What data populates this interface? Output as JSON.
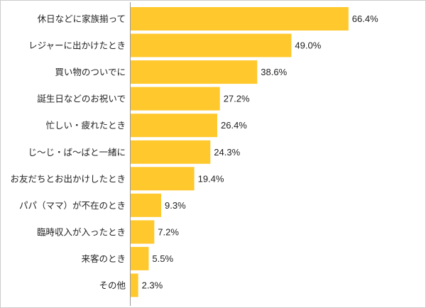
{
  "chart_data": {
    "type": "bar",
    "orientation": "horizontal",
    "categories": [
      "休日などに家族揃って",
      "レジャーに出かけたとき",
      "買い物のついでに",
      "誕生日などのお祝いで",
      "忙しい・疲れたとき",
      "じ〜じ・ば〜ばと一緒に",
      "お友だちとお出かけしたとき",
      "パパ（ママ）が不在のとき",
      "臨時収入が入ったとき",
      "来客のとき",
      "その他"
    ],
    "values": [
      66.4,
      49.0,
      38.6,
      27.2,
      26.4,
      24.3,
      19.4,
      9.3,
      7.2,
      5.5,
      2.3
    ],
    "value_labels": [
      "66.4%",
      "49.0%",
      "38.6%",
      "27.2%",
      "26.4%",
      "24.3%",
      "19.4%",
      "9.3%",
      "7.2%",
      "5.5%",
      "2.3%"
    ],
    "xlim": [
      0,
      100
    ],
    "grid": false,
    "bar_color": "#FFC82C",
    "axis_color": "#999999",
    "frame_color": "#CCCCCC"
  }
}
